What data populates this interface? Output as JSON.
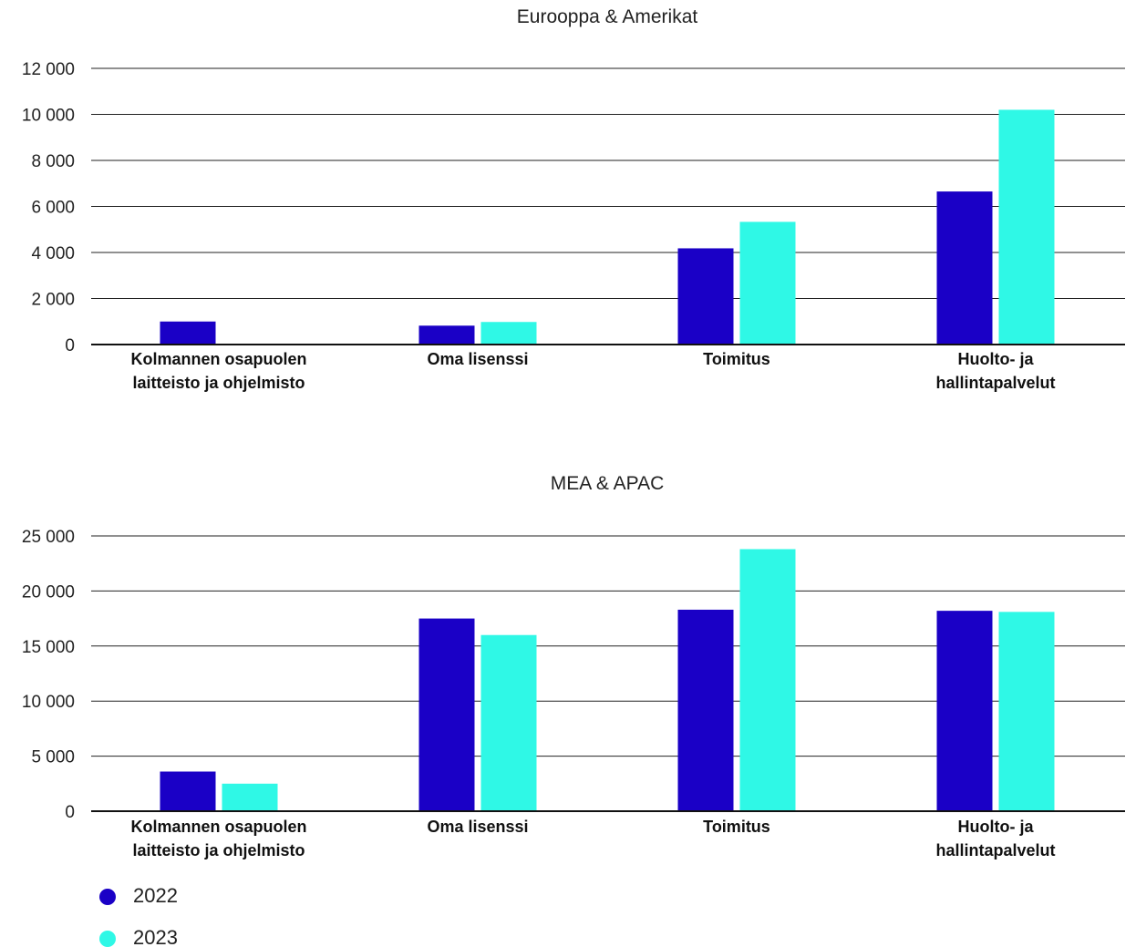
{
  "chart_data": [
    {
      "type": "bar",
      "title": "Eurooppa & Amerikat",
      "categories": [
        [
          "Kolmannen osapuolen",
          "laitteisto ja ohjelmisto"
        ],
        [
          "Oma lisenssi"
        ],
        [
          "Toimitus"
        ],
        [
          "Huolto- ja",
          "hallintapalvelut"
        ]
      ],
      "series": [
        {
          "name": "2022",
          "values": [
            1000,
            820,
            4180,
            6650
          ]
        },
        {
          "name": "2023",
          "values": [
            30,
            980,
            5330,
            10200
          ]
        }
      ],
      "ylim": [
        0,
        12000
      ],
      "yticks": [
        0,
        2000,
        4000,
        6000,
        8000,
        10000,
        12000
      ],
      "ytick_labels": [
        "0",
        "2 000",
        "4 000",
        "6 000",
        "8 000",
        "10 000",
        "12 000"
      ],
      "grid": true
    },
    {
      "type": "bar",
      "title": "MEA & APAC",
      "categories": [
        [
          "Kolmannen osapuolen",
          "laitteisto ja ohjelmisto"
        ],
        [
          "Oma lisenssi"
        ],
        [
          "Toimitus"
        ],
        [
          "Huolto- ja",
          "hallintapalvelut"
        ]
      ],
      "series": [
        {
          "name": "2022",
          "values": [
            3600,
            17500,
            18300,
            18200
          ]
        },
        {
          "name": "2023",
          "values": [
            2500,
            16000,
            23800,
            18100
          ]
        }
      ],
      "ylim": [
        0,
        25000
      ],
      "yticks": [
        0,
        5000,
        10000,
        15000,
        20000,
        25000
      ],
      "ytick_labels": [
        "0",
        "5 000",
        "10 000",
        "15 000",
        "20 000",
        "25 000"
      ],
      "grid": true
    }
  ],
  "legend": {
    "position": "bottom-left",
    "items": [
      {
        "label": "2022",
        "color": "#1a00c6"
      },
      {
        "label": "2023",
        "color": "#2ff8e6"
      }
    ]
  },
  "colors": {
    "series_2022": "#1a00c6",
    "series_2023": "#2ff8e6"
  }
}
